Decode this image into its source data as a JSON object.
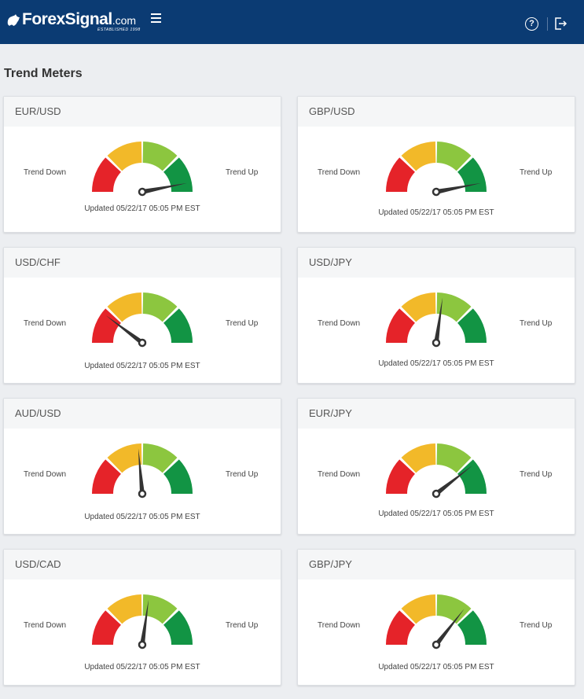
{
  "header": {
    "logo_text": "ForexSignal",
    "logo_suffix": ".com",
    "logo_tagline": "ESTABLISHED 1998",
    "menu_icon": "hamburger-menu-icon",
    "help_icon": "question-circle-icon",
    "logout_icon": "sign-out-icon",
    "background_color": "#0b3b73"
  },
  "page": {
    "title": "Trend Meters"
  },
  "gauge_colors": [
    "#e52329",
    "#f2b929",
    "#8cc63f",
    "#129444"
  ],
  "needle_color": "#333333",
  "labels": {
    "down": "Trend Down",
    "up": "Trend Up"
  },
  "meters": [
    {
      "pair": "EUR/USD",
      "updated": "Updated 05/22/17 05:05 PM EST",
      "needle_angle_deg": 79
    },
    {
      "pair": "GBP/USD",
      "updated": "Updated 05/22/17 05:05 PM EST",
      "needle_angle_deg": 79
    },
    {
      "pair": "USD/CHF",
      "updated": "Updated 05/22/17 05:05 PM EST",
      "needle_angle_deg": -53
    },
    {
      "pair": "USD/JPY",
      "updated": "Updated 05/22/17 05:05 PM EST",
      "needle_angle_deg": 8
    },
    {
      "pair": "AUD/USD",
      "updated": "Updated 05/22/17 05:05 PM EST",
      "needle_angle_deg": -5
    },
    {
      "pair": "EUR/JPY",
      "updated": "Updated 05/22/17 05:05 PM EST",
      "needle_angle_deg": 52
    },
    {
      "pair": "USD/CAD",
      "updated": "Updated 05/22/17 05:05 PM EST",
      "needle_angle_deg": 8
    },
    {
      "pair": "GBP/JPY",
      "updated": "Updated 05/22/17 05:05 PM EST",
      "needle_angle_deg": 38
    }
  ]
}
